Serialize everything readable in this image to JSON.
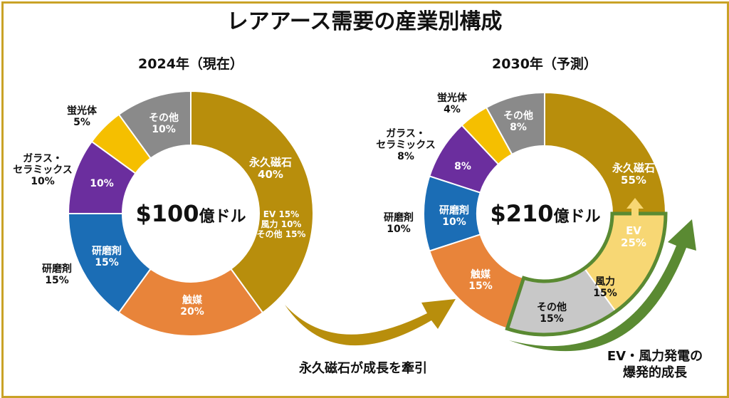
{
  "chart_data": [
    {
      "type": "pie",
      "title": "2024年（現在）",
      "total_label": "$100",
      "total_unit": "億ドル",
      "slices": [
        {
          "name": "永久磁石",
          "value": 40,
          "label": "40%",
          "color": "#B88E0C",
          "detail": [
            "EV 15%",
            "風力 10%",
            "その他 15%"
          ]
        },
        {
          "name": "触媒",
          "value": 20,
          "label": "20%",
          "color": "#E8843A"
        },
        {
          "name": "研磨剤",
          "value": 15,
          "label": "15%",
          "color": "#1B6DB5"
        },
        {
          "name": "ガラス・セラミックス",
          "value": 10,
          "label": "10%",
          "color": "#6B2E9E"
        },
        {
          "name": "蛍光体",
          "value": 5,
          "label": "5%",
          "color": "#F5BF00"
        },
        {
          "name": "その他",
          "value": 10,
          "label": "10%",
          "color": "#8A8A8A"
        }
      ]
    },
    {
      "type": "pie",
      "title": "2030年（予測）",
      "total_label": "$210",
      "total_unit": "億ドル",
      "slices": [
        {
          "name": "EV",
          "value": 25,
          "label": "25%",
          "color": "#B88E0C",
          "group": "永久磁石 55%"
        },
        {
          "name": "風力",
          "value": 15,
          "label": "15%",
          "color": "#F7D774",
          "group": "永久磁石 55%"
        },
        {
          "name": "その他",
          "value": 15,
          "label": "15%",
          "color": "#C8C8C8",
          "group": "永久磁石 55%"
        },
        {
          "name": "触媒",
          "value": 15,
          "label": "15%",
          "color": "#E8843A"
        },
        {
          "name": "研磨剤",
          "value": 10,
          "label": "10%",
          "color": "#1B6DB5"
        },
        {
          "name": "ガラス・セラミックス",
          "value": 8,
          "label": "8%",
          "color": "#6B2E9E"
        },
        {
          "name": "蛍光体",
          "value": 4,
          "label": "4%",
          "color": "#F5BF00"
        },
        {
          "name": "その他",
          "value": 8,
          "label": "8%",
          "color": "#8A8A8A"
        }
      ]
    }
  ],
  "title": "レアアース需要の産業別構成",
  "left": {
    "magnet": "永久磁石",
    "magnet_pct": "40%",
    "ev": "EV 15%",
    "wind": "風力 10%",
    "other_mag": "その他 15%",
    "catalyst": "触媒",
    "catalyst_pct": "20%",
    "abrasive": "研磨剤",
    "abrasive_pct": "15%",
    "abrasive_out": "研磨剤",
    "abrasive_out_pct": "15%",
    "glass_pct_in": "10%",
    "glass1": "ガラス・",
    "glass2": "セラミックス",
    "glass_pct": "10%",
    "phosphor": "蛍光体",
    "phosphor_pct": "5%",
    "other": "その他",
    "other_pct": "10%"
  },
  "right": {
    "magnet": "永久磁石",
    "magnet_pct": "55%",
    "ev": "EV",
    "ev_pct": "25%",
    "wind": "風力",
    "wind_pct": "15%",
    "other_mag": "その他",
    "other_mag_pct": "15%",
    "catalyst": "触媒",
    "catalyst_pct": "15%",
    "abrasive": "研磨剤",
    "abrasive_pct": "10%",
    "abrasive_out": "研磨剤",
    "abrasive_out_pct": "10%",
    "glass_pct_in": "8%",
    "glass1": "ガラス・",
    "glass2": "セラミックス",
    "glass_pct": "8%",
    "phosphor": "蛍光体",
    "phosphor_pct": "4%",
    "other": "その他",
    "other_pct": "8%"
  },
  "notes": {
    "magnet_growth": "永久磁石が成長を牽引",
    "ev_wind1": "EV・風力発電の",
    "ev_wind2": "爆発的成長"
  }
}
